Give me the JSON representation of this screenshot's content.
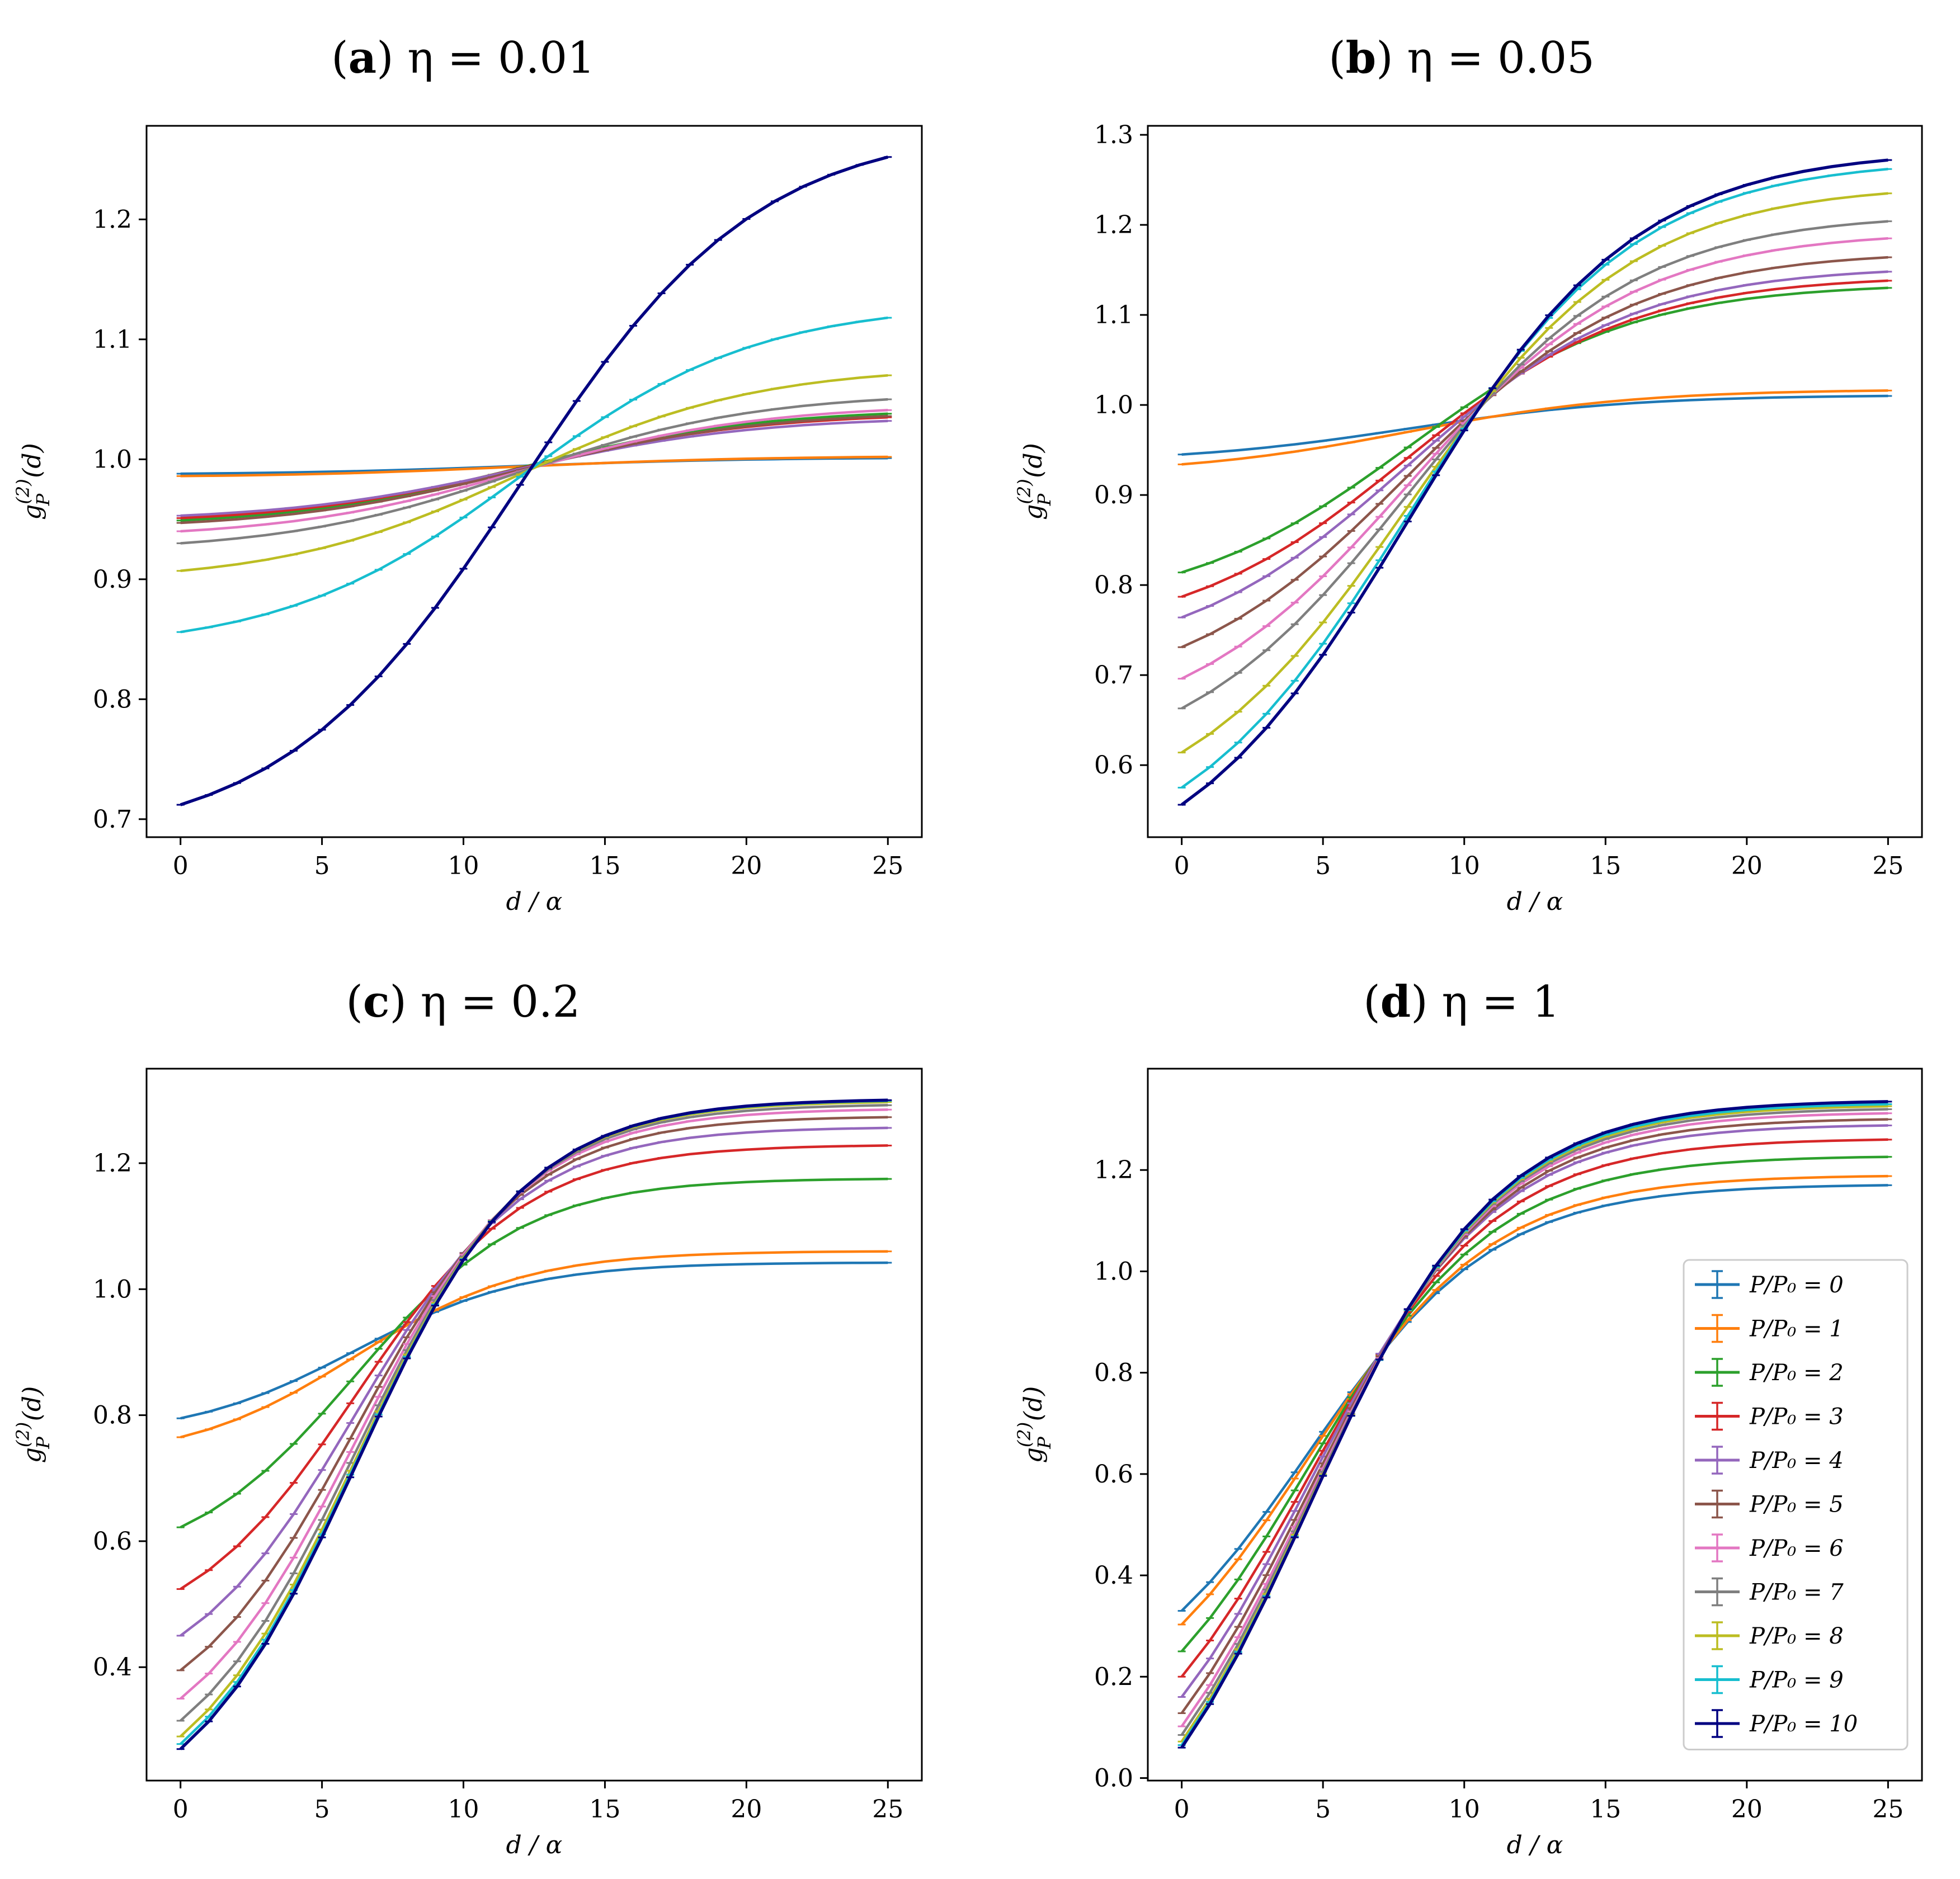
{
  "figure": {
    "series_names": [
      "P/P₀ = 0",
      "P/P₀ = 1",
      "P/P₀ = 2",
      "P/P₀ = 3",
      "P/P₀ = 4",
      "P/P₀ = 5",
      "P/P₀ = 6",
      "P/P₀ = 7",
      "P/P₀ = 8",
      "P/P₀ = 9",
      "P/P₀ = 10"
    ],
    "series_colors": [
      "#1f77b4",
      "#ff7f0e",
      "#2ca02c",
      "#d62728",
      "#9467bd",
      "#8c564b",
      "#e377c2",
      "#7f7f7f",
      "#bcbd22",
      "#17becf",
      "#000080"
    ],
    "legend_panel": 3
  },
  "chart_data": [
    {
      "type": "line",
      "panel_label": "(a)",
      "title": "η = 0.01",
      "xlabel": "d / α",
      "ylabel": "g_P^(2)(d)",
      "xlim": [
        -1.2,
        26.2
      ],
      "ylim": [
        0.685,
        1.278
      ],
      "xticks": [
        0,
        5,
        10,
        15,
        20,
        25
      ],
      "yticks": [
        0.7,
        0.8,
        0.9,
        1.0,
        1.1,
        1.2
      ],
      "x": [
        0,
        25
      ],
      "series": [
        {
          "name": "P/P₀ = 0",
          "start": 0.988,
          "end": 1.001
        },
        {
          "name": "P/P₀ = 1",
          "start": 0.986,
          "end": 1.002
        },
        {
          "name": "P/P₀ = 2",
          "start": 0.949,
          "end": 1.038
        },
        {
          "name": "P/P₀ = 3",
          "start": 0.951,
          "end": 1.035
        },
        {
          "name": "P/P₀ = 4",
          "start": 0.953,
          "end": 1.032
        },
        {
          "name": "P/P₀ = 5",
          "start": 0.947,
          "end": 1.036
        },
        {
          "name": "P/P₀ = 6",
          "start": 0.94,
          "end": 1.041
        },
        {
          "name": "P/P₀ = 7",
          "start": 0.93,
          "end": 1.05
        },
        {
          "name": "P/P₀ = 8",
          "start": 0.907,
          "end": 1.07
        },
        {
          "name": "P/P₀ = 9",
          "start": 0.856,
          "end": 1.118
        },
        {
          "name": "P/P₀ = 10",
          "start": 0.712,
          "end": 1.252
        }
      ]
    },
    {
      "type": "line",
      "panel_label": "(b)",
      "title": "η = 0.05",
      "xlabel": "d / α",
      "ylabel": "g_P^(2)(d)",
      "xlim": [
        -1.2,
        26.2
      ],
      "ylim": [
        0.52,
        1.31
      ],
      "xticks": [
        0,
        5,
        10,
        15,
        20,
        25
      ],
      "yticks": [
        0.6,
        0.7,
        0.8,
        0.9,
        1.0,
        1.1,
        1.2,
        1.3
      ],
      "x": [
        0,
        25
      ],
      "series": [
        {
          "name": "P/P₀ = 0",
          "start": 0.945,
          "end": 1.01
        },
        {
          "name": "P/P₀ = 1",
          "start": 0.934,
          "end": 1.016
        },
        {
          "name": "P/P₀ = 2",
          "start": 0.814,
          "end": 1.13
        },
        {
          "name": "P/P₀ = 3",
          "start": 0.787,
          "end": 1.138
        },
        {
          "name": "P/P₀ = 4",
          "start": 0.764,
          "end": 1.148
        },
        {
          "name": "P/P₀ = 5",
          "start": 0.731,
          "end": 1.164
        },
        {
          "name": "P/P₀ = 6",
          "start": 0.696,
          "end": 1.185
        },
        {
          "name": "P/P₀ = 7",
          "start": 0.663,
          "end": 1.204
        },
        {
          "name": "P/P₀ = 8",
          "start": 0.614,
          "end": 1.235
        },
        {
          "name": "P/P₀ = 9",
          "start": 0.575,
          "end": 1.262
        },
        {
          "name": "P/P₀ = 10",
          "start": 0.556,
          "end": 1.272
        }
      ]
    },
    {
      "type": "line",
      "panel_label": "(c)",
      "title": "η = 0.2",
      "xlabel": "d / α",
      "ylabel": "g_P^(2)(d)",
      "xlim": [
        -1.2,
        26.2
      ],
      "ylim": [
        0.22,
        1.35
      ],
      "xticks": [
        0,
        5,
        10,
        15,
        20,
        25
      ],
      "yticks": [
        0.4,
        0.6,
        0.8,
        1.0,
        1.2
      ],
      "x": [
        0,
        25
      ],
      "series": [
        {
          "name": "P/P₀ = 0",
          "start": 0.795,
          "end": 1.042
        },
        {
          "name": "P/P₀ = 1",
          "start": 0.765,
          "end": 1.06
        },
        {
          "name": "P/P₀ = 2",
          "start": 0.622,
          "end": 1.175
        },
        {
          "name": "P/P₀ = 3",
          "start": 0.524,
          "end": 1.228
        },
        {
          "name": "P/P₀ = 4",
          "start": 0.45,
          "end": 1.256
        },
        {
          "name": "P/P₀ = 5",
          "start": 0.395,
          "end": 1.273
        },
        {
          "name": "P/P₀ = 6",
          "start": 0.35,
          "end": 1.285
        },
        {
          "name": "P/P₀ = 7",
          "start": 0.315,
          "end": 1.292
        },
        {
          "name": "P/P₀ = 8",
          "start": 0.29,
          "end": 1.297
        },
        {
          "name": "P/P₀ = 9",
          "start": 0.278,
          "end": 1.299
        },
        {
          "name": "P/P₀ = 10",
          "start": 0.27,
          "end": 1.3
        }
      ]
    },
    {
      "type": "line",
      "panel_label": "(d)",
      "title": "η = 1",
      "xlabel": "d / α",
      "ylabel": "g_P^(2)(d)",
      "xlim": [
        -1.2,
        26.2
      ],
      "ylim": [
        -0.005,
        1.4
      ],
      "xticks": [
        0,
        5,
        10,
        15,
        20,
        25
      ],
      "yticks": [
        0.0,
        0.2,
        0.4,
        0.6,
        0.8,
        1.0,
        1.2
      ],
      "x": [
        0,
        25
      ],
      "series": [
        {
          "name": "P/P₀ = 0",
          "start": 0.33,
          "end": 1.17
        },
        {
          "name": "P/P₀ = 1",
          "start": 0.303,
          "end": 1.188
        },
        {
          "name": "P/P₀ = 2",
          "start": 0.25,
          "end": 1.226
        },
        {
          "name": "P/P₀ = 3",
          "start": 0.2,
          "end": 1.26
        },
        {
          "name": "P/P₀ = 4",
          "start": 0.16,
          "end": 1.288
        },
        {
          "name": "P/P₀ = 5",
          "start": 0.128,
          "end": 1.3
        },
        {
          "name": "P/P₀ = 6",
          "start": 0.102,
          "end": 1.312
        },
        {
          "name": "P/P₀ = 7",
          "start": 0.085,
          "end": 1.32
        },
        {
          "name": "P/P₀ = 8",
          "start": 0.072,
          "end": 1.326
        },
        {
          "name": "P/P₀ = 9",
          "start": 0.065,
          "end": 1.33
        },
        {
          "name": "P/P₀ = 10",
          "start": 0.06,
          "end": 1.335
        }
      ]
    }
  ]
}
